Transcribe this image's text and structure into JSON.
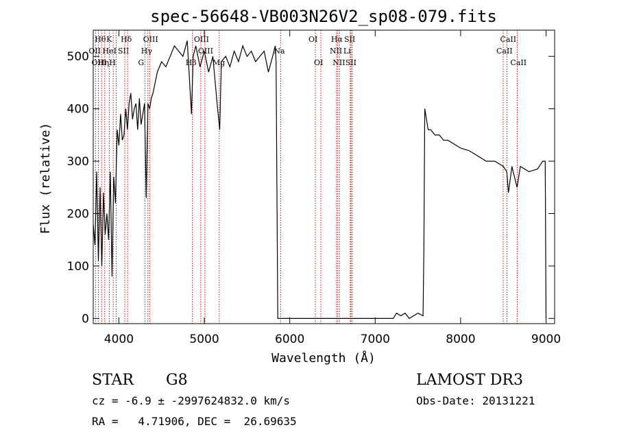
{
  "chart_data": {
    "type": "line",
    "title": "spec-56648-VB003N26V2_sp08-079.fits",
    "xlabel": "Wavelength (Å)",
    "ylabel": "Flux (relative)",
    "xlim": [
      3700,
      9100
    ],
    "ylim": [
      -10,
      550
    ],
    "xticks": [
      4000,
      5000,
      6000,
      7000,
      8000,
      9000
    ],
    "yticks": [
      0,
      100,
      200,
      300,
      400,
      500
    ],
    "series": [
      {
        "name": "flux",
        "x": [
          3700,
          3720,
          3740,
          3760,
          3780,
          3800,
          3820,
          3840,
          3860,
          3880,
          3900,
          3920,
          3940,
          3960,
          3980,
          4000,
          4020,
          4040,
          4060,
          4080,
          4100,
          4120,
          4140,
          4160,
          4180,
          4200,
          4220,
          4240,
          4260,
          4280,
          4300,
          4320,
          4340,
          4360,
          4380,
          4400,
          4450,
          4500,
          4550,
          4600,
          4650,
          4700,
          4750,
          4800,
          4850,
          4870,
          4900,
          4950,
          5000,
          5050,
          5100,
          5150,
          5180,
          5200,
          5250,
          5300,
          5350,
          5400,
          5450,
          5500,
          5550,
          5600,
          5650,
          5700,
          5750,
          5800,
          5830,
          5840,
          5860,
          5900,
          6500,
          7000,
          7200,
          7210,
          7250,
          7300,
          7350,
          7400,
          7450,
          7500,
          7560,
          7570,
          7580,
          7600,
          7620,
          7650,
          7700,
          7750,
          7800,
          7850,
          7900,
          7950,
          8000,
          8100,
          8200,
          8300,
          8400,
          8500,
          8540,
          8560,
          8600,
          8660,
          8700,
          8800,
          8900,
          8960,
          8990,
          9000
        ],
        "y": [
          180,
          140,
          280,
          110,
          250,
          100,
          240,
          160,
          200,
          150,
          280,
          80,
          270,
          220,
          360,
          330,
          390,
          340,
          350,
          400,
          360,
          410,
          430,
          380,
          400,
          410,
          360,
          420,
          370,
          390,
          410,
          230,
          410,
          400,
          420,
          430,
          470,
          490,
          480,
          500,
          520,
          510,
          500,
          530,
          390,
          500,
          520,
          480,
          510,
          470,
          500,
          410,
          360,
          490,
          500,
          480,
          510,
          490,
          520,
          500,
          510,
          490,
          500,
          510,
          470,
          500,
          520,
          490,
          0,
          0,
          0,
          0,
          0,
          0,
          10,
          5,
          10,
          0,
          5,
          10,
          5,
          130,
          400,
          380,
          360,
          360,
          350,
          350,
          340,
          340,
          335,
          330,
          325,
          320,
          310,
          300,
          300,
          290,
          280,
          240,
          290,
          250,
          290,
          280,
          285,
          300,
          300,
          0
        ]
      }
    ],
    "spectral_lines": [
      {
        "label": "Hθ",
        "wavelength": 3798,
        "row": 1
      },
      {
        "label": "OII",
        "wavelength": 3727,
        "row": 2
      },
      {
        "label": "OIII",
        "wavelength": 3760,
        "row": 3
      },
      {
        "label": "K",
        "wavelength": 3934,
        "row": 1
      },
      {
        "label": "HeI",
        "wavelength": 3889,
        "row": 2
      },
      {
        "label": "Hη",
        "wavelength": 3835,
        "row": 3
      },
      {
        "label": "SII",
        "wavelength": 4069,
        "row": 2
      },
      {
        "label": "H",
        "wavelength": 3968,
        "row": 3
      },
      {
        "label": "Hδ",
        "wavelength": 4102,
        "row": 1
      },
      {
        "label": "OIII",
        "wavelength": 4363,
        "row": 1
      },
      {
        "label": "Hγ",
        "wavelength": 4340,
        "row": 2
      },
      {
        "label": "G",
        "wavelength": 4305,
        "row": 3
      },
      {
        "label": "OIII",
        "wavelength": 4959,
        "row": 1
      },
      {
        "label": "OIII",
        "wavelength": 5007,
        "row": 2
      },
      {
        "label": "Hβ",
        "wavelength": 4861,
        "row": 3
      },
      {
        "label": "Mg",
        "wavelength": 5175,
        "row": 3
      },
      {
        "label": "Na",
        "wavelength": 5893,
        "row": 2
      },
      {
        "label": "OI",
        "wavelength": 6300,
        "row": 1
      },
      {
        "label": "OI",
        "wavelength": 6364,
        "row": 3
      },
      {
        "label": "Hα",
        "wavelength": 6563,
        "row": 1
      },
      {
        "label": "NII",
        "wavelength": 6548,
        "row": 2
      },
      {
        "label": "NII",
        "wavelength": 6583,
        "row": 3
      },
      {
        "label": "SII",
        "wavelength": 6717,
        "row": 1
      },
      {
        "label": "Li",
        "wavelength": 6708,
        "row": 2
      },
      {
        "label": "SII",
        "wavelength": 6731,
        "row": 3
      },
      {
        "label": "CaII",
        "wavelength": 8542,
        "row": 1
      },
      {
        "label": "CaII",
        "wavelength": 8498,
        "row": 2
      },
      {
        "label": "CaII",
        "wavelength": 8662,
        "row": 3
      }
    ]
  },
  "info": {
    "class_label": "STAR",
    "subclass": "G8",
    "survey": "LAMOST DR3",
    "velocity": "cz = -6.9 ± -2997624832.0 km/s",
    "obs_date": "Obs-Date: 20131221",
    "coords": "RA =   4.71906, DEC =  26.69635"
  },
  "colors": {
    "line_marker": "#cc0000",
    "spectrum": "#000000"
  }
}
